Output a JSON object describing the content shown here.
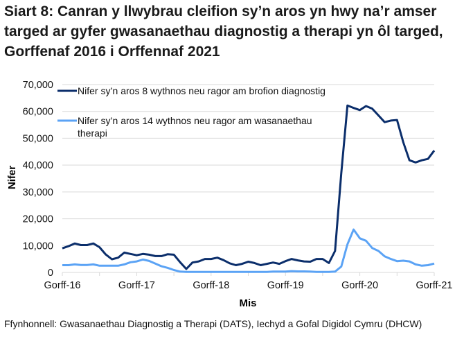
{
  "title": "Siart 8: Canran y llwybrau cleifion sy’n aros yn hwy na’r amser targed ar gyfer gwasanaethau diagnostig a therapi yn ôl targed, Gorffenaf 2016 i Orffennaf 2021",
  "source": "Ffynhonnell: Gwasanaethau Diagnostig a Therapi (DATS), Iechyd a Gofal Digidol Cymru (DHCW)",
  "colors": {
    "diagnostic": "#0b2e6b",
    "therapy": "#5ba3f5",
    "grid": "#d9d9d9"
  },
  "chart_data": {
    "type": "line",
    "title": "Siart 8: Canran y llwybrau cleifion sy’n aros yn hwy na’r amser targed ar gyfer gwasanaethau diagnostig a therapi yn ôl targed, Gorffenaf 2016 i Orffennaf 2021",
    "xlabel": "Mis",
    "ylabel": "Nifer",
    "ylim": [
      0,
      70000
    ],
    "yticks": [
      "0",
      "10,000",
      "20,000",
      "30,000",
      "40,000",
      "50,000",
      "60,000",
      "70,000"
    ],
    "xtick_labels": [
      "Gorff-16",
      "Gorff-17",
      "Gorff-18",
      "Gorff-19",
      "Gorff-20",
      "Gorff-21"
    ],
    "grid": true,
    "legend_position": "top-left inside",
    "x_start": "2016-07",
    "x_end": "2021-07",
    "x_frequency": "monthly",
    "series": [
      {
        "name": "Nifer sy’n aros 8 wythnos neu ragor am brofion diagnostig",
        "values": [
          9000,
          9800,
          10800,
          10200,
          10200,
          10800,
          9400,
          6700,
          4900,
          5500,
          7400,
          6900,
          6400,
          6900,
          6600,
          6100,
          6100,
          6800,
          6600,
          3800,
          1300,
          3700,
          4100,
          5000,
          5000,
          5500,
          4600,
          3400,
          2700,
          3200,
          4000,
          3500,
          2700,
          3200,
          3700,
          3200,
          4200,
          5000,
          4500,
          4100,
          4000,
          5000,
          5000,
          3500,
          8000,
          37000,
          62200,
          61300,
          60500,
          62000,
          61000,
          58500,
          56000,
          56600,
          56800,
          48500,
          41800,
          41000,
          41800,
          42300,
          45400
        ]
      },
      {
        "name": "Nifer sy’n aros 14 wythnos neu ragor am wasanaethau therapi",
        "values": [
          2700,
          2700,
          3000,
          2800,
          2800,
          3000,
          2500,
          2500,
          2500,
          2500,
          3000,
          3800,
          4100,
          4800,
          4300,
          3300,
          2300,
          1700,
          900,
          300,
          200,
          200,
          200,
          200,
          200,
          200,
          200,
          200,
          200,
          200,
          200,
          200,
          200,
          200,
          300,
          300,
          300,
          500,
          400,
          400,
          300,
          200,
          200,
          200,
          300,
          2200,
          10500,
          16000,
          12700,
          11800,
          9100,
          8000,
          6000,
          5000,
          4200,
          4400,
          4100,
          3000,
          2500,
          2700,
          3300
        ]
      }
    ]
  },
  "legend": {
    "items": [
      {
        "line1": "Nifer sy’n aros 8 wythnos neu ragor am brofion diagnostig",
        "line2": ""
      },
      {
        "line1": "Nifer sy’n aros 14 wythnos neu ragor am wasanaethau",
        "line2": "therapi"
      }
    ]
  }
}
